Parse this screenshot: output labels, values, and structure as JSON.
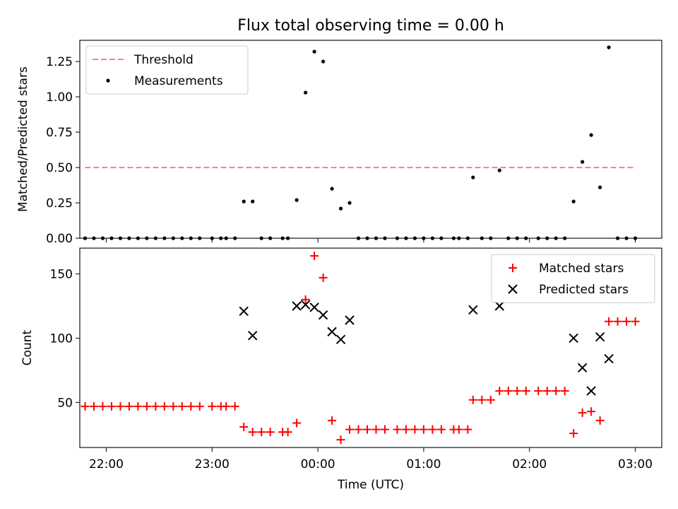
{
  "title": "Flux total observing time = 0.00 h",
  "chart_data": [
    {
      "type": "scatter",
      "ylabel": "Matched/Predicted stars",
      "xlim": [
        "21:45",
        "03:15"
      ],
      "ylim": [
        0,
        1.4
      ],
      "yticks": [
        0.0,
        0.25,
        0.5,
        0.75,
        1.0,
        1.25
      ],
      "ytick_labels": [
        "0.00",
        "0.25",
        "0.50",
        "0.75",
        "1.00",
        "1.25"
      ],
      "legend_position": "upper left",
      "threshold": {
        "name": "Threshold",
        "color": "#ff7f7f",
        "x": [
          "21:48",
          "03:00"
        ],
        "y": [
          0.5,
          0.5
        ]
      },
      "series": [
        {
          "name": "Measurements",
          "color": "#000000",
          "points": [
            [
              "21:48",
              0
            ],
            [
              "21:53",
              0
            ],
            [
              "21:58",
              0
            ],
            [
              "22:03",
              0
            ],
            [
              "22:08",
              0
            ],
            [
              "22:13",
              0
            ],
            [
              "22:18",
              0
            ],
            [
              "22:23",
              0
            ],
            [
              "22:28",
              0
            ],
            [
              "22:33",
              0
            ],
            [
              "22:38",
              0
            ],
            [
              "22:43",
              0
            ],
            [
              "22:48",
              0
            ],
            [
              "22:53",
              0
            ],
            [
              "23:00",
              0
            ],
            [
              "23:05",
              0
            ],
            [
              "23:08",
              0
            ],
            [
              "23:13",
              0
            ],
            [
              "23:18",
              0.26
            ],
            [
              "23:23",
              0.26
            ],
            [
              "23:28",
              0
            ],
            [
              "23:33",
              0
            ],
            [
              "23:40",
              0
            ],
            [
              "23:43",
              0
            ],
            [
              "23:48",
              0.27
            ],
            [
              "23:53",
              1.03
            ],
            [
              "23:58",
              1.32
            ],
            [
              "00:03",
              1.25
            ],
            [
              "00:08",
              0.35
            ],
            [
              "00:13",
              0.21
            ],
            [
              "00:18",
              0.25
            ],
            [
              "00:23",
              0
            ],
            [
              "00:28",
              0
            ],
            [
              "00:33",
              0
            ],
            [
              "00:38",
              0
            ],
            [
              "00:45",
              0
            ],
            [
              "00:50",
              0
            ],
            [
              "00:55",
              0
            ],
            [
              "01:00",
              0
            ],
            [
              "01:05",
              0
            ],
            [
              "01:10",
              0
            ],
            [
              "01:17",
              0
            ],
            [
              "01:20",
              0
            ],
            [
              "01:25",
              0
            ],
            [
              "01:28",
              0.43
            ],
            [
              "01:33",
              0
            ],
            [
              "01:38",
              0
            ],
            [
              "01:43",
              0.48
            ],
            [
              "01:48",
              0
            ],
            [
              "01:53",
              0
            ],
            [
              "01:58",
              0
            ],
            [
              "02:05",
              0
            ],
            [
              "02:10",
              0
            ],
            [
              "02:15",
              0
            ],
            [
              "02:20",
              0
            ],
            [
              "02:25",
              0.26
            ],
            [
              "02:30",
              0.54
            ],
            [
              "02:35",
              0.73
            ],
            [
              "02:40",
              0.36
            ],
            [
              "02:45",
              1.35
            ],
            [
              "02:50",
              0
            ],
            [
              "02:55",
              0
            ],
            [
              "03:00",
              0
            ]
          ]
        }
      ]
    },
    {
      "type": "scatter",
      "xlabel": "Time (UTC)",
      "ylabel": "Count",
      "xlim": [
        "21:45",
        "03:15"
      ],
      "ylim": [
        15,
        170
      ],
      "xticks": [
        "22:00",
        "23:00",
        "00:00",
        "01:00",
        "02:00",
        "03:00"
      ],
      "yticks": [
        50,
        100,
        150
      ],
      "ytick_labels": [
        "50",
        "100",
        "150"
      ],
      "legend_position": "upper right",
      "series": [
        {
          "name": "Matched stars",
          "marker": "+",
          "color": "#ff0000",
          "points": [
            [
              "21:48",
              47
            ],
            [
              "21:53",
              47
            ],
            [
              "21:58",
              47
            ],
            [
              "22:03",
              47
            ],
            [
              "22:08",
              47
            ],
            [
              "22:13",
              47
            ],
            [
              "22:18",
              47
            ],
            [
              "22:23",
              47
            ],
            [
              "22:28",
              47
            ],
            [
              "22:33",
              47
            ],
            [
              "22:38",
              47
            ],
            [
              "22:43",
              47
            ],
            [
              "22:48",
              47
            ],
            [
              "22:53",
              47
            ],
            [
              "23:00",
              47
            ],
            [
              "23:05",
              47
            ],
            [
              "23:08",
              47
            ],
            [
              "23:13",
              47
            ],
            [
              "23:18",
              31
            ],
            [
              "23:23",
              27
            ],
            [
              "23:28",
              27
            ],
            [
              "23:33",
              27
            ],
            [
              "23:40",
              27
            ],
            [
              "23:43",
              27
            ],
            [
              "23:48",
              34
            ],
            [
              "23:53",
              130
            ],
            [
              "23:58",
              164
            ],
            [
              "00:03",
              147
            ],
            [
              "00:08",
              36
            ],
            [
              "00:13",
              21
            ],
            [
              "00:18",
              29
            ],
            [
              "00:23",
              29
            ],
            [
              "00:28",
              29
            ],
            [
              "00:33",
              29
            ],
            [
              "00:38",
              29
            ],
            [
              "00:45",
              29
            ],
            [
              "00:50",
              29
            ],
            [
              "00:55",
              29
            ],
            [
              "01:00",
              29
            ],
            [
              "01:05",
              29
            ],
            [
              "01:10",
              29
            ],
            [
              "01:17",
              29
            ],
            [
              "01:20",
              29
            ],
            [
              "01:25",
              29
            ],
            [
              "01:28",
              52
            ],
            [
              "01:33",
              52
            ],
            [
              "01:38",
              52
            ],
            [
              "01:43",
              59
            ],
            [
              "01:48",
              59
            ],
            [
              "01:53",
              59
            ],
            [
              "01:58",
              59
            ],
            [
              "02:05",
              59
            ],
            [
              "02:10",
              59
            ],
            [
              "02:15",
              59
            ],
            [
              "02:20",
              59
            ],
            [
              "02:25",
              26
            ],
            [
              "02:30",
              42
            ],
            [
              "02:35",
              43
            ],
            [
              "02:40",
              36
            ],
            [
              "02:45",
              113
            ],
            [
              "02:50",
              113
            ],
            [
              "02:55",
              113
            ],
            [
              "03:00",
              113
            ]
          ]
        },
        {
          "name": "Predicted stars",
          "marker": "x",
          "color": "#000000",
          "points": [
            [
              "23:18",
              121
            ],
            [
              "23:23",
              102
            ],
            [
              "23:48",
              125
            ],
            [
              "23:53",
              126
            ],
            [
              "23:58",
              124
            ],
            [
              "00:03",
              118
            ],
            [
              "00:08",
              105
            ],
            [
              "00:13",
              99
            ],
            [
              "00:18",
              114
            ],
            [
              "01:28",
              122
            ],
            [
              "01:43",
              125
            ],
            [
              "02:25",
              100
            ],
            [
              "02:30",
              77
            ],
            [
              "02:35",
              59
            ],
            [
              "02:40",
              101
            ],
            [
              "02:45",
              84
            ]
          ]
        }
      ]
    }
  ]
}
